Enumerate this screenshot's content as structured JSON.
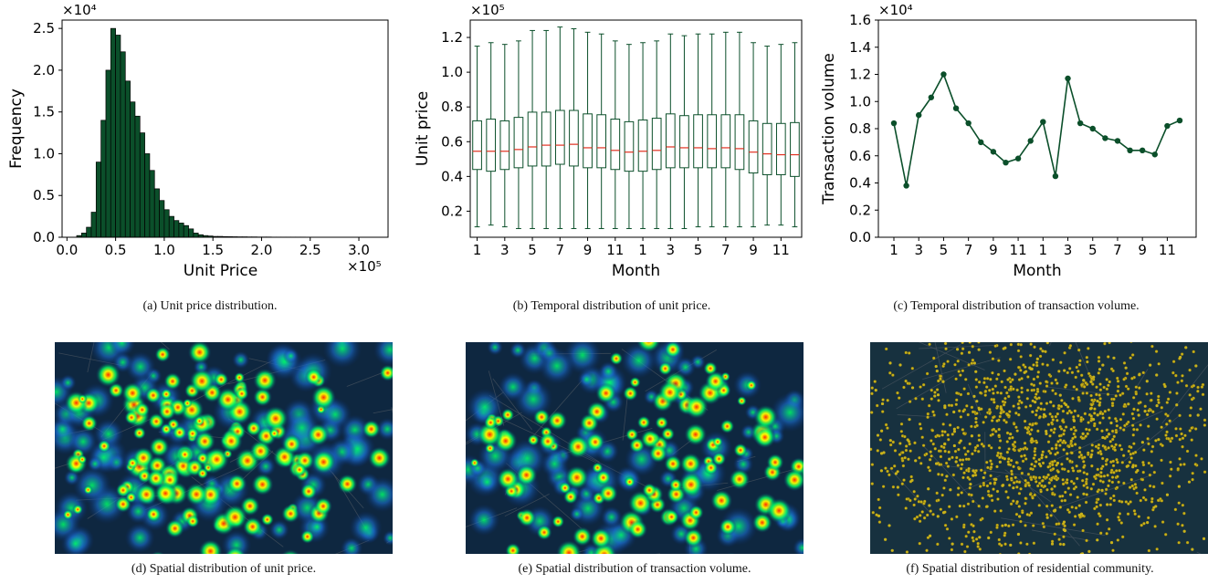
{
  "captions": {
    "a": "(a)  Unit price distribution.",
    "b": "(b)  Temporal distribution of unit price.",
    "c": "(c)  Temporal distribution of transaction volume.",
    "d": "(d)  Spatial distribution of unit price.",
    "e": "(e)  Spatial distribution of transaction volume.",
    "f": "(f)  Spatial distribution of residential community."
  },
  "chart_data": [
    {
      "type": "bar",
      "subtype": "histogram",
      "xlabel": "Unit Price",
      "ylabel": "Frequency",
      "x_multiplier": "×10⁵",
      "y_multiplier": "×10⁴",
      "xlim": [
        -0.05,
        3.3
      ],
      "ylim": [
        0,
        2.6
      ],
      "xticks": [
        "0.0",
        "0.5",
        "1.0",
        "1.5",
        "2.0",
        "2.5",
        "3.0"
      ],
      "yticks": [
        "0.0",
        "0.5",
        "1.0",
        "1.5",
        "2.0",
        "2.5"
      ],
      "bin_start": 0.1,
      "bin_width": 0.05,
      "values": [
        0.02,
        0.05,
        0.12,
        0.3,
        0.9,
        1.4,
        2.0,
        2.5,
        2.42,
        2.22,
        1.87,
        1.62,
        1.45,
        1.25,
        1.0,
        0.8,
        0.58,
        0.44,
        0.33,
        0.25,
        0.2,
        0.17,
        0.14,
        0.1,
        0.05,
        0.03,
        0.02,
        0.015,
        0.01,
        0.01,
        0.008,
        0.007,
        0.006,
        0.005,
        0.005,
        0.004,
        0.004,
        0.003,
        0.003,
        0.003,
        0.002,
        0.002,
        0.002,
        0.002,
        0.002,
        0.002,
        0.002,
        0.001,
        0.001,
        0.001,
        0.001,
        0.001,
        0.001,
        0.001,
        0.001,
        0.001,
        0.001,
        0.001,
        0.001,
        0.001,
        0.001,
        0.001,
        0.001
      ],
      "colors": {
        "fill": "#0b4f2a",
        "edge": "#000000"
      }
    },
    {
      "type": "box",
      "xlabel": "Month",
      "ylabel": "Unit price",
      "y_multiplier": "×10⁵",
      "ylim": [
        0.05,
        1.3
      ],
      "yticks": [
        "0.2",
        "0.4",
        "0.6",
        "0.8",
        "1.0",
        "1.2"
      ],
      "xtick_labels": [
        "1",
        "3",
        "5",
        "7",
        "9",
        "11",
        "1",
        "3",
        "5",
        "7",
        "9",
        "11"
      ],
      "months": [
        1,
        2,
        3,
        4,
        5,
        6,
        7,
        8,
        9,
        10,
        11,
        12,
        1,
        2,
        3,
        4,
        5,
        6,
        7,
        8,
        9,
        10,
        11,
        12
      ],
      "boxes": [
        {
          "min": 0.11,
          "q1": 0.44,
          "median": 0.545,
          "q3": 0.72,
          "max": 1.15
        },
        {
          "min": 0.12,
          "q1": 0.43,
          "median": 0.545,
          "q3": 0.73,
          "max": 1.17
        },
        {
          "min": 0.11,
          "q1": 0.44,
          "median": 0.545,
          "q3": 0.72,
          "max": 1.16
        },
        {
          "min": 0.1,
          "q1": 0.45,
          "median": 0.555,
          "q3": 0.74,
          "max": 1.18
        },
        {
          "min": 0.1,
          "q1": 0.46,
          "median": 0.57,
          "q3": 0.77,
          "max": 1.24
        },
        {
          "min": 0.1,
          "q1": 0.46,
          "median": 0.58,
          "q3": 0.77,
          "max": 1.24
        },
        {
          "min": 0.1,
          "q1": 0.47,
          "median": 0.58,
          "q3": 0.78,
          "max": 1.26
        },
        {
          "min": 0.1,
          "q1": 0.46,
          "median": 0.585,
          "q3": 0.78,
          "max": 1.25
        },
        {
          "min": 0.1,
          "q1": 0.45,
          "median": 0.565,
          "q3": 0.76,
          "max": 1.23
        },
        {
          "min": 0.1,
          "q1": 0.45,
          "median": 0.565,
          "q3": 0.755,
          "max": 1.22
        },
        {
          "min": 0.1,
          "q1": 0.44,
          "median": 0.55,
          "q3": 0.73,
          "max": 1.18
        },
        {
          "min": 0.1,
          "q1": 0.43,
          "median": 0.54,
          "q3": 0.715,
          "max": 1.16
        },
        {
          "min": 0.1,
          "q1": 0.43,
          "median": 0.545,
          "q3": 0.725,
          "max": 1.17
        },
        {
          "min": 0.1,
          "q1": 0.44,
          "median": 0.55,
          "q3": 0.735,
          "max": 1.18
        },
        {
          "min": 0.1,
          "q1": 0.45,
          "median": 0.57,
          "q3": 0.76,
          "max": 1.22
        },
        {
          "min": 0.1,
          "q1": 0.45,
          "median": 0.565,
          "q3": 0.75,
          "max": 1.21
        },
        {
          "min": 0.11,
          "q1": 0.45,
          "median": 0.565,
          "q3": 0.755,
          "max": 1.22
        },
        {
          "min": 0.11,
          "q1": 0.45,
          "median": 0.56,
          "q3": 0.755,
          "max": 1.22
        },
        {
          "min": 0.11,
          "q1": 0.45,
          "median": 0.565,
          "q3": 0.755,
          "max": 1.23
        },
        {
          "min": 0.11,
          "q1": 0.44,
          "median": 0.56,
          "q3": 0.755,
          "max": 1.23
        },
        {
          "min": 0.11,
          "q1": 0.42,
          "median": 0.54,
          "q3": 0.72,
          "max": 1.17
        },
        {
          "min": 0.12,
          "q1": 0.41,
          "median": 0.53,
          "q3": 0.705,
          "max": 1.15
        },
        {
          "min": 0.12,
          "q1": 0.41,
          "median": 0.525,
          "q3": 0.705,
          "max": 1.16
        },
        {
          "min": 0.11,
          "q1": 0.4,
          "median": 0.525,
          "q3": 0.71,
          "max": 1.17
        }
      ],
      "colors": {
        "box": "#0b4f2a",
        "median": "#e03020"
      }
    },
    {
      "type": "line",
      "xlabel": "Month",
      "ylabel": "Transaction volume",
      "y_multiplier": "×10⁴",
      "ylim": [
        0,
        1.6
      ],
      "yticks": [
        "0.0",
        "0.2",
        "0.4",
        "0.6",
        "0.8",
        "1.0",
        "1.2",
        "1.4",
        "1.6"
      ],
      "xtick_labels": [
        "1",
        "3",
        "5",
        "7",
        "9",
        "11",
        "1",
        "3",
        "5",
        "7",
        "9",
        "11"
      ],
      "values": [
        0.84,
        0.38,
        0.9,
        1.03,
        1.2,
        0.95,
        0.84,
        0.7,
        0.63,
        0.55,
        0.58,
        0.71,
        0.85,
        0.45,
        1.17,
        0.84,
        0.8,
        0.73,
        0.71,
        0.64,
        0.64,
        0.61,
        0.82,
        0.86
      ],
      "colors": {
        "line": "#0b4f2a"
      }
    }
  ],
  "maps": {
    "d": {
      "type": "heatmap",
      "palette": [
        "#0a2a6b",
        "#00ff66",
        "#ffff00",
        "#ff2a00"
      ]
    },
    "e": {
      "type": "heatmap",
      "palette": [
        "#0a2a6b",
        "#00ff66",
        "#ffff00",
        "#ff2a00"
      ]
    },
    "f": {
      "type": "point-density",
      "palette": [
        "#c9b21a"
      ]
    }
  }
}
